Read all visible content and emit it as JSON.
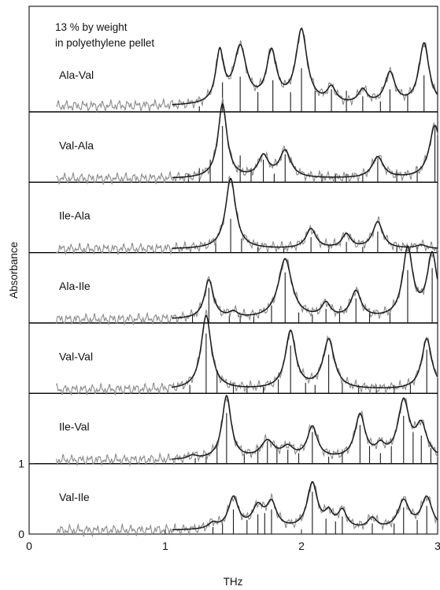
{
  "chart_data": {
    "type": "line",
    "title": "",
    "annotation": [
      "13 % by weight",
      "in polyethylene pellet"
    ],
    "xlabel": "THz",
    "ylabel": "Absorbance",
    "xlim": [
      0,
      3
    ],
    "ylim": [
      0,
      7.5
    ],
    "x_ticks": [
      "0",
      "1",
      "2",
      "3"
    ],
    "y_ticks": [
      "0",
      "1"
    ],
    "grid": false,
    "legend": "none",
    "colors": {
      "experimental": "#8c8c8c",
      "fit": "#1a1a1a",
      "sticks": "#1a1a1a",
      "separator": "#000000"
    },
    "series": [
      {
        "name": "Ala-Val",
        "x_start": 0.2,
        "baseline": 0.08,
        "peaks": [
          [
            1.4,
            0.72,
            0.035
          ],
          [
            1.55,
            0.8,
            0.055
          ],
          [
            1.78,
            0.72,
            0.045
          ],
          [
            2.0,
            1.05,
            0.05
          ],
          [
            2.22,
            0.22,
            0.04
          ],
          [
            2.45,
            0.2,
            0.04
          ],
          [
            2.65,
            0.45,
            0.045
          ],
          [
            2.9,
            0.88,
            0.045
          ]
        ],
        "sticks": [
          [
            1.25,
            0.08
          ],
          [
            1.42,
            0.42
          ],
          [
            1.55,
            0.5
          ],
          [
            1.68,
            0.28
          ],
          [
            1.79,
            0.45
          ],
          [
            1.92,
            0.28
          ],
          [
            2.0,
            0.62
          ],
          [
            2.1,
            0.3
          ],
          [
            2.22,
            0.32
          ],
          [
            2.33,
            0.3
          ],
          [
            2.45,
            0.22
          ],
          [
            2.58,
            0.15
          ],
          [
            2.65,
            0.32
          ],
          [
            2.78,
            0.25
          ],
          [
            2.9,
            0.52
          ]
        ]
      },
      {
        "name": "Val-Ala",
        "x_start": 0.2,
        "baseline": 0.05,
        "peaks": [
          [
            1.42,
            1.05,
            0.04
          ],
          [
            1.72,
            0.3,
            0.045
          ],
          [
            1.88,
            0.38,
            0.05
          ],
          [
            2.56,
            0.3,
            0.05
          ],
          [
            2.98,
            0.75,
            0.05
          ]
        ],
        "sticks": [
          [
            1.17,
            0.12
          ],
          [
            1.25,
            0.2
          ],
          [
            1.33,
            0.32
          ],
          [
            1.42,
            0.8
          ],
          [
            1.55,
            0.38
          ],
          [
            1.63,
            0.2
          ],
          [
            1.72,
            0.32
          ],
          [
            1.8,
            0.12
          ],
          [
            1.88,
            0.4
          ],
          [
            2.15,
            0.12
          ],
          [
            2.25,
            0.12
          ],
          [
            2.33,
            0.12
          ],
          [
            2.45,
            0.12
          ],
          [
            2.56,
            0.32
          ],
          [
            2.7,
            0.18
          ],
          [
            2.85,
            0.22
          ],
          [
            2.98,
            0.8
          ]
        ]
      },
      {
        "name": "Ile-Ala",
        "x_start": 0.2,
        "baseline": 0.05,
        "peaks": [
          [
            1.48,
            1.0,
            0.045
          ],
          [
            2.07,
            0.28,
            0.045
          ],
          [
            2.33,
            0.2,
            0.04
          ],
          [
            2.56,
            0.38,
            0.045
          ],
          [
            2.88,
            0.05,
            0.05
          ]
        ],
        "sticks": [
          [
            1.37,
            0.2
          ],
          [
            1.48,
            0.48
          ],
          [
            1.56,
            0.2
          ],
          [
            1.68,
            0.08
          ],
          [
            1.87,
            0.08
          ],
          [
            2.07,
            0.22
          ],
          [
            2.2,
            0.1
          ],
          [
            2.33,
            0.15
          ],
          [
            2.45,
            0.08
          ],
          [
            2.56,
            0.3
          ],
          [
            2.7,
            0.1
          ],
          [
            2.85,
            0.08
          ]
        ]
      },
      {
        "name": "Ala-Ile",
        "x_start": 0.2,
        "baseline": 0.05,
        "peaks": [
          [
            1.32,
            0.55,
            0.04
          ],
          [
            1.5,
            0.08,
            0.04
          ],
          [
            1.88,
            0.85,
            0.06
          ],
          [
            2.18,
            0.2,
            0.04
          ],
          [
            2.4,
            0.38,
            0.045
          ],
          [
            2.78,
            0.98,
            0.045
          ],
          [
            2.96,
            0.9,
            0.045
          ]
        ],
        "sticks": [
          [
            1.2,
            0.12
          ],
          [
            1.32,
            0.5
          ],
          [
            1.47,
            0.1
          ],
          [
            1.55,
            0.1
          ],
          [
            1.65,
            0.12
          ],
          [
            1.78,
            0.25
          ],
          [
            1.88,
            0.72
          ],
          [
            1.98,
            0.15
          ],
          [
            2.08,
            0.12
          ],
          [
            2.18,
            0.2
          ],
          [
            2.28,
            0.2
          ],
          [
            2.4,
            0.35
          ],
          [
            2.5,
            0.15
          ],
          [
            2.65,
            0.15
          ],
          [
            2.78,
            0.75
          ],
          [
            2.96,
            0.78
          ]
        ]
      },
      {
        "name": "Val-Val",
        "x_start": 0.2,
        "baseline": 0.05,
        "peaks": [
          [
            1.3,
            1.05,
            0.045
          ],
          [
            1.92,
            0.82,
            0.045
          ],
          [
            2.2,
            0.7,
            0.05
          ],
          [
            2.92,
            0.72,
            0.045
          ]
        ],
        "sticks": [
          [
            1.18,
            0.12
          ],
          [
            1.3,
            0.85
          ],
          [
            1.38,
            0.3
          ],
          [
            1.5,
            0.15
          ],
          [
            1.6,
            0.12
          ],
          [
            1.72,
            0.12
          ],
          [
            1.83,
            0.2
          ],
          [
            1.92,
            0.68
          ],
          [
            2.03,
            0.15
          ],
          [
            2.1,
            0.12
          ],
          [
            2.2,
            0.55
          ],
          [
            2.3,
            0.15
          ],
          [
            2.42,
            0.12
          ],
          [
            2.55,
            0.12
          ],
          [
            2.68,
            0.12
          ],
          [
            2.8,
            0.15
          ],
          [
            2.92,
            0.62
          ]
        ]
      },
      {
        "name": "Ile-Val",
        "x_start": 0.2,
        "baseline": 0.05,
        "peaks": [
          [
            1.2,
            0.05,
            0.04
          ],
          [
            1.45,
            0.9,
            0.04
          ],
          [
            1.75,
            0.25,
            0.06
          ],
          [
            1.9,
            0.15,
            0.05
          ],
          [
            2.08,
            0.45,
            0.045
          ],
          [
            2.43,
            0.62,
            0.045
          ],
          [
            2.58,
            0.15,
            0.04
          ],
          [
            2.75,
            0.8,
            0.05
          ],
          [
            2.88,
            0.45,
            0.05
          ]
        ],
        "sticks": [
          [
            1.22,
            0.08
          ],
          [
            1.3,
            0.15
          ],
          [
            1.38,
            0.3
          ],
          [
            1.45,
            0.72
          ],
          [
            1.58,
            0.15
          ],
          [
            1.68,
            0.25
          ],
          [
            1.75,
            0.32
          ],
          [
            1.82,
            0.25
          ],
          [
            1.9,
            0.2
          ],
          [
            1.98,
            0.15
          ],
          [
            2.08,
            0.45
          ],
          [
            2.2,
            0.1
          ],
          [
            2.3,
            0.15
          ],
          [
            2.43,
            0.55
          ],
          [
            2.5,
            0.25
          ],
          [
            2.58,
            0.15
          ],
          [
            2.66,
            0.25
          ],
          [
            2.75,
            0.68
          ],
          [
            2.82,
            0.45
          ],
          [
            2.88,
            0.4
          ],
          [
            2.95,
            0.22
          ]
        ]
      },
      {
        "name": "Val-Ile",
        "x_start": 0.2,
        "baseline": 0.05,
        "peaks": [
          [
            1.35,
            0.08,
            0.04
          ],
          [
            1.5,
            0.45,
            0.045
          ],
          [
            1.68,
            0.3,
            0.05
          ],
          [
            1.78,
            0.35,
            0.045
          ],
          [
            2.08,
            0.65,
            0.045
          ],
          [
            2.2,
            0.2,
            0.035
          ],
          [
            2.3,
            0.25,
            0.04
          ],
          [
            2.52,
            0.15,
            0.04
          ],
          [
            2.75,
            0.4,
            0.05
          ],
          [
            2.92,
            0.45,
            0.05
          ]
        ],
        "sticks": [
          [
            1.35,
            0.1
          ],
          [
            1.42,
            0.15
          ],
          [
            1.5,
            0.35
          ],
          [
            1.6,
            0.2
          ],
          [
            1.68,
            0.28
          ],
          [
            1.73,
            0.3
          ],
          [
            1.78,
            0.35
          ],
          [
            2.08,
            0.6
          ],
          [
            2.18,
            0.22
          ],
          [
            2.25,
            0.18
          ],
          [
            2.3,
            0.25
          ],
          [
            2.52,
            0.15
          ],
          [
            2.68,
            0.15
          ],
          [
            2.75,
            0.38
          ],
          [
            2.85,
            0.2
          ],
          [
            2.92,
            0.4
          ]
        ]
      }
    ]
  }
}
